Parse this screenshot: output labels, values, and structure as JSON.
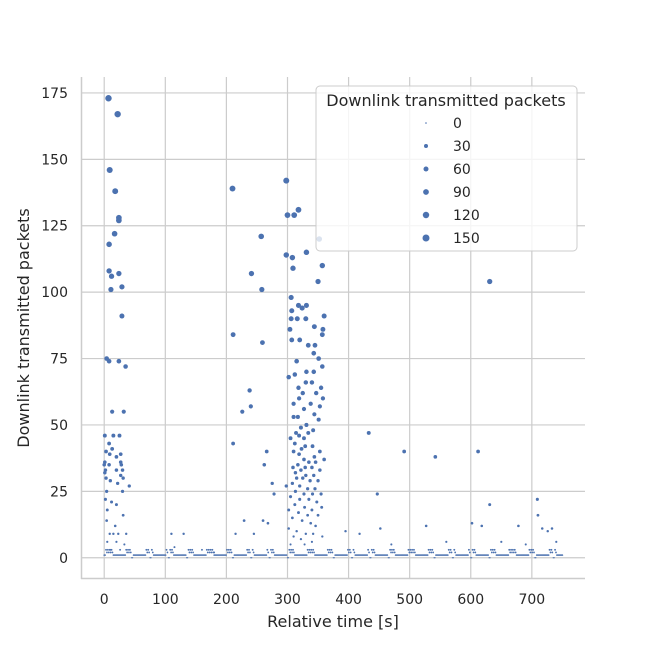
{
  "chart_data": {
    "type": "scatter",
    "title": "",
    "xlabel": "Relative time [s]",
    "ylabel": "Downlink transmitted packets",
    "xlim": [
      -38,
      787
    ],
    "ylim": [
      -8,
      181
    ],
    "xticks": [
      0,
      100,
      200,
      300,
      400,
      500,
      600,
      700
    ],
    "yticks": [
      0,
      25,
      50,
      75,
      100,
      125,
      150,
      175
    ],
    "grid": true,
    "legend_position": "top-right",
    "legend": {
      "title": "Downlink transmitted packets",
      "sizes": [
        0,
        30,
        60,
        90,
        120,
        150
      ]
    },
    "color": "#4c72b0",
    "size_encoding": "point size proportional to Downlink transmitted packets",
    "baseline": {
      "description": "near-continuous points at 0 to 3 packets",
      "x_range": [
        0,
        750
      ],
      "y_values": [
        0,
        1,
        2,
        3
      ]
    },
    "points": [
      [
        7,
        173
      ],
      [
        22,
        167
      ],
      [
        9,
        146
      ],
      [
        18,
        138
      ],
      [
        24,
        128
      ],
      [
        24,
        127
      ],
      [
        17,
        122
      ],
      [
        8,
        118
      ],
      [
        8,
        108
      ],
      [
        24,
        107
      ],
      [
        12,
        106
      ],
      [
        11,
        101
      ],
      [
        29,
        102
      ],
      [
        29,
        91
      ],
      [
        4,
        75
      ],
      [
        8,
        74
      ],
      [
        24,
        74
      ],
      [
        35,
        72
      ],
      [
        13,
        55
      ],
      [
        32,
        55
      ],
      [
        1,
        46
      ],
      [
        15,
        46
      ],
      [
        25,
        46
      ],
      [
        8,
        43
      ],
      [
        13,
        41
      ],
      [
        3,
        40
      ],
      [
        9,
        39
      ],
      [
        27,
        39
      ],
      [
        20,
        38
      ],
      [
        1,
        36
      ],
      [
        27,
        36
      ],
      [
        0,
        35
      ],
      [
        8,
        35
      ],
      [
        28,
        35
      ],
      [
        2,
        33
      ],
      [
        20,
        33
      ],
      [
        30,
        33
      ],
      [
        1,
        32
      ],
      [
        27,
        31
      ],
      [
        3,
        30
      ],
      [
        31,
        30
      ],
      [
        10,
        29
      ],
      [
        22,
        28
      ],
      [
        41,
        27
      ],
      [
        4,
        25
      ],
      [
        30,
        25
      ],
      [
        2,
        22
      ],
      [
        12,
        21
      ],
      [
        20,
        20
      ],
      [
        5,
        18
      ],
      [
        31,
        16
      ],
      [
        4,
        14
      ],
      [
        18,
        12
      ],
      [
        9,
        9
      ],
      [
        15,
        9
      ],
      [
        23,
        9
      ],
      [
        36,
        9
      ],
      [
        5,
        6
      ],
      [
        20,
        6
      ],
      [
        33,
        5
      ],
      [
        10,
        3
      ],
      [
        26,
        3
      ],
      [
        210,
        139
      ],
      [
        257,
        121
      ],
      [
        241,
        107
      ],
      [
        258,
        101
      ],
      [
        211,
        84
      ],
      [
        259,
        81
      ],
      [
        238,
        63
      ],
      [
        240,
        57
      ],
      [
        226,
        55
      ],
      [
        211,
        43
      ],
      [
        266,
        40
      ],
      [
        262,
        35
      ],
      [
        275,
        28
      ],
      [
        278,
        24
      ],
      [
        229,
        14
      ],
      [
        268,
        13
      ],
      [
        260,
        14
      ],
      [
        245,
        9
      ],
      [
        215,
        9
      ],
      [
        298,
        142
      ],
      [
        300,
        129
      ],
      [
        318,
        131
      ],
      [
        311,
        129
      ],
      [
        331,
        115
      ],
      [
        298,
        114
      ],
      [
        308,
        113
      ],
      [
        357,
        110
      ],
      [
        309,
        109
      ],
      [
        352,
        120
      ],
      [
        350,
        104
      ],
      [
        306,
        98
      ],
      [
        307,
        93
      ],
      [
        331,
        95
      ],
      [
        318,
        95
      ],
      [
        306,
        90
      ],
      [
        316,
        90
      ],
      [
        330,
        90
      ],
      [
        324,
        94
      ],
      [
        344,
        87
      ],
      [
        358,
        86
      ],
      [
        360,
        91
      ],
      [
        304,
        86
      ],
      [
        357,
        84
      ],
      [
        345,
        80
      ],
      [
        320,
        82
      ],
      [
        307,
        82
      ],
      [
        334,
        80
      ],
      [
        343,
        77
      ],
      [
        351,
        75
      ],
      [
        315,
        74
      ],
      [
        357,
        72
      ],
      [
        343,
        70
      ],
      [
        331,
        70
      ],
      [
        302,
        68
      ],
      [
        312,
        69
      ],
      [
        330,
        66
      ],
      [
        340,
        66
      ],
      [
        355,
        64
      ],
      [
        318,
        64
      ],
      [
        319,
        60
      ],
      [
        325,
        62
      ],
      [
        347,
        62
      ],
      [
        358,
        60
      ],
      [
        310,
        58
      ],
      [
        338,
        58
      ],
      [
        353,
        57
      ],
      [
        327,
        56
      ],
      [
        344,
        54
      ],
      [
        317,
        53
      ],
      [
        310,
        53
      ],
      [
        351,
        52
      ],
      [
        331,
        50
      ],
      [
        322,
        49
      ],
      [
        342,
        48
      ],
      [
        314,
        47
      ],
      [
        334,
        47
      ],
      [
        305,
        45
      ],
      [
        319,
        46
      ],
      [
        327,
        45
      ],
      [
        341,
        42
      ],
      [
        312,
        43
      ],
      [
        329,
        42
      ],
      [
        323,
        41
      ],
      [
        353,
        40
      ],
      [
        310,
        40
      ],
      [
        319,
        39
      ],
      [
        344,
        38
      ],
      [
        327,
        37
      ],
      [
        335,
        36
      ],
      [
        346,
        36
      ],
      [
        360,
        37
      ],
      [
        317,
        35
      ],
      [
        329,
        34
      ],
      [
        340,
        34
      ],
      [
        309,
        34
      ],
      [
        322,
        33
      ],
      [
        353,
        33
      ],
      [
        313,
        32
      ],
      [
        330,
        31
      ],
      [
        343,
        31
      ],
      [
        315,
        30
      ],
      [
        325,
        30
      ],
      [
        337,
        29
      ],
      [
        350,
        29
      ],
      [
        308,
        28
      ],
      [
        320,
        27
      ],
      [
        333,
        26
      ],
      [
        345,
        26
      ],
      [
        298,
        27
      ],
      [
        313,
        25
      ],
      [
        327,
        24
      ],
      [
        341,
        24
      ],
      [
        355,
        24
      ],
      [
        305,
        23
      ],
      [
        320,
        22
      ],
      [
        335,
        22
      ],
      [
        348,
        21
      ],
      [
        312,
        20
      ],
      [
        328,
        19
      ],
      [
        340,
        18
      ],
      [
        356,
        19
      ],
      [
        302,
        18
      ],
      [
        318,
        17
      ],
      [
        333,
        16
      ],
      [
        350,
        16
      ],
      [
        308,
        15
      ],
      [
        324,
        14
      ],
      [
        338,
        13
      ],
      [
        346,
        12
      ],
      [
        302,
        11
      ],
      [
        315,
        10
      ],
      [
        330,
        9
      ],
      [
        342,
        9
      ],
      [
        357,
        8
      ],
      [
        310,
        8
      ],
      [
        322,
        7
      ],
      [
        340,
        6
      ],
      [
        305,
        5
      ],
      [
        328,
        5
      ],
      [
        433,
        47
      ],
      [
        491,
        40
      ],
      [
        542,
        38
      ],
      [
        612,
        40
      ],
      [
        631,
        104
      ],
      [
        631,
        20
      ],
      [
        709,
        22
      ],
      [
        447,
        24
      ],
      [
        452,
        11
      ],
      [
        395,
        10
      ],
      [
        418,
        9
      ],
      [
        527,
        12
      ],
      [
        602,
        13
      ],
      [
        618,
        12
      ],
      [
        678,
        12
      ],
      [
        717,
        11
      ],
      [
        726,
        10
      ],
      [
        733,
        11
      ],
      [
        710,
        16
      ],
      [
        470,
        5
      ],
      [
        560,
        6
      ],
      [
        650,
        6
      ],
      [
        690,
        5
      ],
      [
        740,
        6
      ],
      [
        110,
        9
      ],
      [
        130,
        9
      ],
      [
        115,
        4
      ],
      [
        160,
        3
      ],
      [
        180,
        2
      ]
    ]
  }
}
